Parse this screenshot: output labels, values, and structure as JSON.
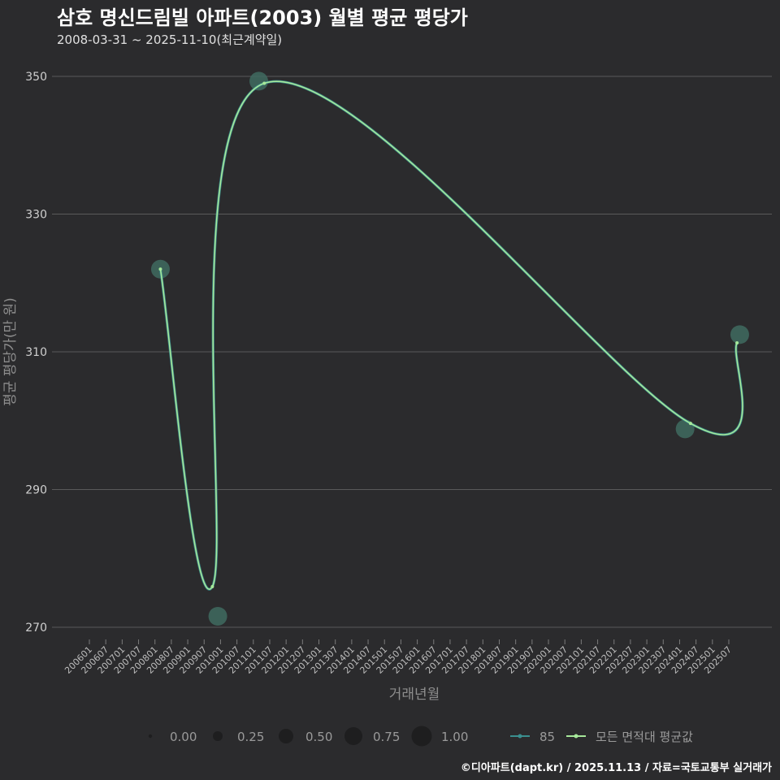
{
  "header": {
    "title": "삼호 명신드림빌 아파트(2003) 월별 평균 평당가",
    "subtitle": "2008-03-31 ~ 2025-11-10(최근계약일)"
  },
  "footer": {
    "credit": "©디아파트(dapt.kr) / 2025.11.13 / 자료=국토교통부 실거래가"
  },
  "colors": {
    "background": "#2b2b2d",
    "grid": "#5a5a5a",
    "series_85": "#3a8f8f",
    "series_avg": "#a6e89a",
    "bubble": "#3f6b60"
  },
  "chart_data": {
    "type": "line",
    "title": "삼호 명신드림빌 아파트(2003) 월별 평균 평당가",
    "xlabel": "거래년월",
    "ylabel": "평균 평당가(만 원)",
    "ylim": [
      268,
      352
    ],
    "yticks": [
      270,
      290,
      310,
      330,
      350
    ],
    "x_tick_labels": [
      "200601",
      "200607",
      "200701",
      "200707",
      "200801",
      "200807",
      "200901",
      "200907",
      "201001",
      "201007",
      "201101",
      "201107",
      "201201",
      "201207",
      "201301",
      "201307",
      "201401",
      "201407",
      "201501",
      "201507",
      "201601",
      "201607",
      "201701",
      "201707",
      "201801",
      "201807",
      "201901",
      "201907",
      "202001",
      "202007",
      "202101",
      "202107",
      "202201",
      "202207",
      "202301",
      "202307",
      "202401",
      "202407",
      "202501",
      "202507"
    ],
    "series": [
      {
        "name": "85",
        "points": [
          {
            "x": "2008-03",
            "y": 322.0,
            "size": 0.6
          },
          {
            "x": "2009-12",
            "y": 271.6,
            "size": 0.6
          },
          {
            "x": "2011-03",
            "y": 349.3,
            "size": 0.6
          },
          {
            "x": "2024-03",
            "y": 298.8,
            "size": 0.6
          },
          {
            "x": "2025-11",
            "y": 312.5,
            "size": 0.6
          }
        ]
      },
      {
        "name": "모든 면적대 평균값",
        "points": [
          {
            "x": "2008-03",
            "y": 322.0
          },
          {
            "x": "2009-10",
            "y": 275.9
          },
          {
            "x": "2011-05",
            "y": 349.0
          },
          {
            "x": "2024-05",
            "y": 299.6
          },
          {
            "x": "2025-10",
            "y": 311.3
          }
        ]
      }
    ],
    "legend": {
      "size_title": "",
      "size_labels": [
        "0.00",
        "0.25",
        "0.50",
        "0.75",
        "1.00"
      ],
      "series_labels": [
        "85",
        "모든 면적대 평균값"
      ],
      "placement": "bottom"
    }
  }
}
